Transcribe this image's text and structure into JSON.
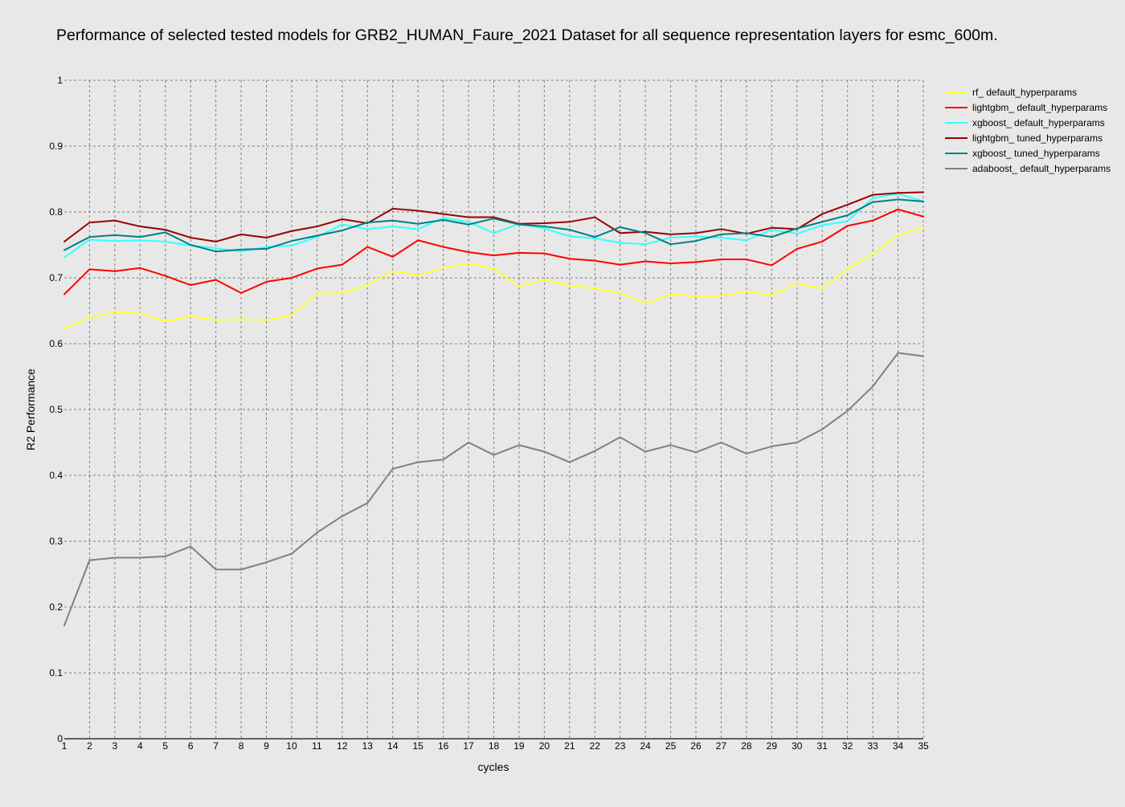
{
  "chart_data": {
    "type": "line",
    "title": "Performance of selected tested models for GRB2_HUMAN_Faure_2021 Dataset for all sequence representation layers for esmc_600m.",
    "xlabel": "cycles",
    "ylabel": "R2 Performance",
    "xlim": [
      1,
      35
    ],
    "ylim": [
      0,
      1
    ],
    "grid": true,
    "legend_position": "right",
    "x": [
      1,
      2,
      3,
      4,
      5,
      6,
      7,
      8,
      9,
      10,
      11,
      12,
      13,
      14,
      15,
      16,
      17,
      18,
      19,
      20,
      21,
      22,
      23,
      24,
      25,
      26,
      27,
      28,
      29,
      30,
      31,
      32,
      33,
      34,
      35
    ],
    "y_ticks": [
      0,
      0.1,
      0.2,
      0.3,
      0.4,
      0.5,
      0.6,
      0.7,
      0.8,
      0.9,
      1
    ],
    "y_tick_labels": [
      "0",
      "0.1",
      "0.2",
      "0.3",
      "0.4",
      "0.5",
      "0.6",
      "0.7",
      "0.8",
      "0.9",
      "1"
    ],
    "series": [
      {
        "name": "rf_ default_hyperparams",
        "color": "#ffff33",
        "values": [
          0.623,
          0.64,
          0.648,
          0.646,
          0.634,
          0.641,
          0.636,
          0.637,
          0.636,
          0.643,
          0.676,
          0.677,
          0.689,
          0.71,
          0.704,
          0.715,
          0.722,
          0.714,
          0.687,
          0.697,
          0.688,
          0.684,
          0.677,
          0.661,
          0.675,
          0.672,
          0.673,
          0.679,
          0.674,
          0.692,
          0.684,
          0.713,
          0.736,
          0.765,
          0.777
        ]
      },
      {
        "name": "lightgbm_ default_hyperparams",
        "color": "#ff0000",
        "values": [
          0.675,
          0.713,
          0.71,
          0.715,
          0.703,
          0.689,
          0.697,
          0.677,
          0.694,
          0.7,
          0.714,
          0.72,
          0.747,
          0.732,
          0.757,
          0.747,
          0.739,
          0.734,
          0.738,
          0.737,
          0.729,
          0.726,
          0.72,
          0.725,
          0.722,
          0.724,
          0.728,
          0.728,
          0.719,
          0.744,
          0.755,
          0.779,
          0.787,
          0.804,
          0.793
        ]
      },
      {
        "name": "xgboost_ default_hyperparams",
        "color": "#33ffff",
        "values": [
          0.731,
          0.758,
          0.756,
          0.757,
          0.755,
          0.749,
          0.745,
          0.74,
          0.747,
          0.749,
          0.762,
          0.781,
          0.774,
          0.778,
          0.774,
          0.791,
          0.785,
          0.768,
          0.782,
          0.775,
          0.763,
          0.76,
          0.753,
          0.751,
          0.761,
          0.763,
          0.761,
          0.757,
          0.773,
          0.767,
          0.78,
          0.786,
          0.821,
          0.828,
          0.816
        ]
      },
      {
        "name": "lightgbm_ tuned_hyperparams",
        "color": "#990000",
        "values": [
          0.755,
          0.784,
          0.787,
          0.778,
          0.773,
          0.761,
          0.755,
          0.766,
          0.761,
          0.771,
          0.778,
          0.789,
          0.783,
          0.805,
          0.802,
          0.797,
          0.792,
          0.792,
          0.782,
          0.783,
          0.785,
          0.792,
          0.768,
          0.77,
          0.766,
          0.768,
          0.774,
          0.767,
          0.776,
          0.774,
          0.797,
          0.811,
          0.826,
          0.829,
          0.83
        ]
      },
      {
        "name": "xgboost_ tuned_hyperparams",
        "color": "#008080",
        "values": [
          0.742,
          0.762,
          0.765,
          0.762,
          0.769,
          0.75,
          0.74,
          0.743,
          0.744,
          0.756,
          0.764,
          0.772,
          0.784,
          0.787,
          0.782,
          0.788,
          0.781,
          0.79,
          0.781,
          0.778,
          0.773,
          0.762,
          0.777,
          0.768,
          0.751,
          0.756,
          0.766,
          0.768,
          0.762,
          0.775,
          0.785,
          0.795,
          0.815,
          0.819,
          0.816
        ]
      },
      {
        "name": "adaboost_ default_hyperparams",
        "color": "#808080",
        "values": [
          0.172,
          0.271,
          0.275,
          0.275,
          0.277,
          0.292,
          0.257,
          0.257,
          0.268,
          0.281,
          0.313,
          0.338,
          0.358,
          0.41,
          0.42,
          0.424,
          0.45,
          0.431,
          0.446,
          0.436,
          0.42,
          0.437,
          0.458,
          0.436,
          0.446,
          0.435,
          0.45,
          0.433,
          0.444,
          0.45,
          0.47,
          0.498,
          0.535,
          0.586,
          0.581
        ]
      }
    ]
  }
}
